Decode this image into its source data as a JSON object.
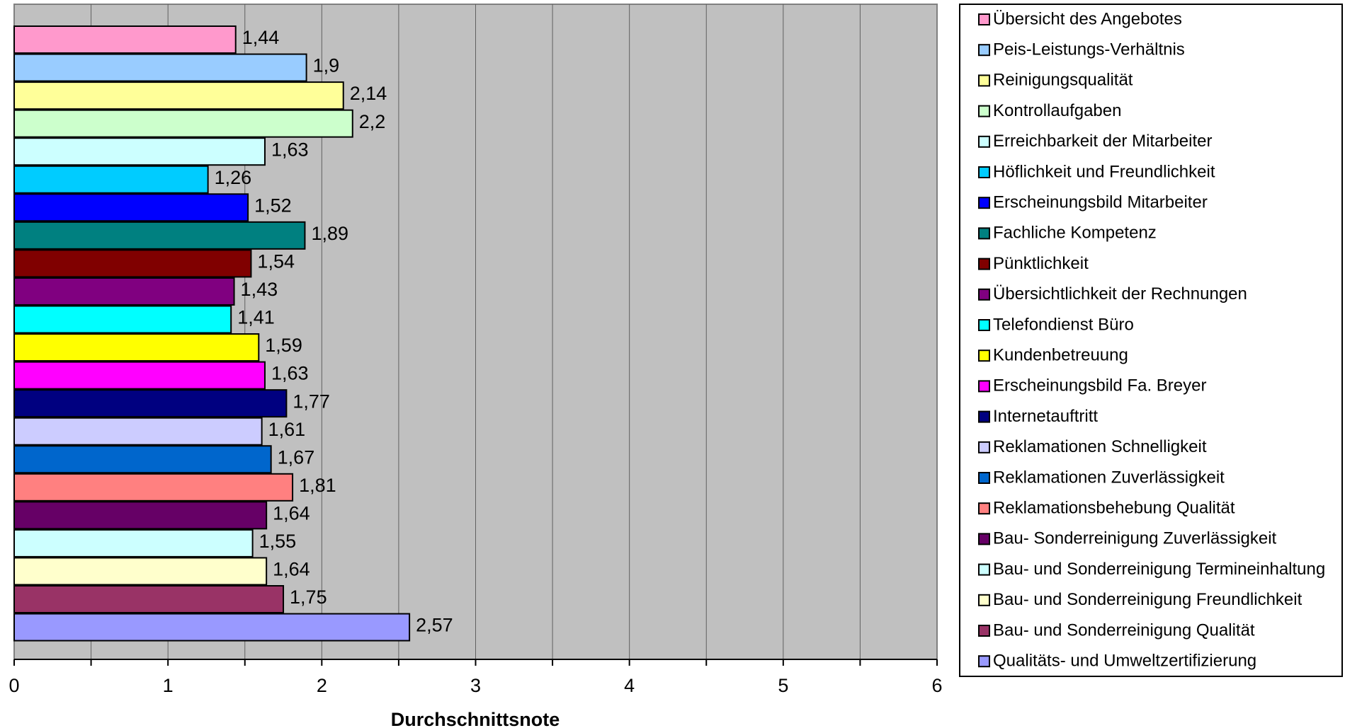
{
  "chart_data": {
    "type": "bar",
    "orientation": "horizontal",
    "xlabel": "Durchschnittsnote",
    "xlim": [
      0,
      6
    ],
    "xticks": [
      "0",
      "1",
      "2",
      "3",
      "4",
      "5",
      "6"
    ],
    "grid": true,
    "legend_position": "right",
    "plot_background": "#c0c0c0",
    "series": [
      {
        "name": "Übersicht des Angebotes",
        "value": 1.44,
        "label": "1,44",
        "color": "#ff99cc"
      },
      {
        "name": "Peis-Leistungs-Verhältnis",
        "value": 1.9,
        "label": "1,9",
        "color": "#99ccff"
      },
      {
        "name": "Reinigungsqualität",
        "value": 2.14,
        "label": "2,14",
        "color": "#ffff99"
      },
      {
        "name": "Kontrollaufgaben",
        "value": 2.2,
        "label": "2,2",
        "color": "#ccffcc"
      },
      {
        "name": "Erreichbarkeit der Mitarbeiter",
        "value": 1.63,
        "label": "1,63",
        "color": "#ccffff"
      },
      {
        "name": "Höflichkeit und Freundlichkeit",
        "value": 1.26,
        "label": "1,26",
        "color": "#00ccff"
      },
      {
        "name": "Erscheinungsbild Mitarbeiter",
        "value": 1.52,
        "label": "1,52",
        "color": "#0000ff"
      },
      {
        "name": "Fachliche Kompetenz",
        "value": 1.89,
        "label": "1,89",
        "color": "#008080"
      },
      {
        "name": "Pünktlichkeit",
        "value": 1.54,
        "label": "1,54",
        "color": "#800000"
      },
      {
        "name": "Übersichtlichkeit der Rechnungen",
        "value": 1.43,
        "label": "1,43",
        "color": "#800080"
      },
      {
        "name": "Telefondienst Büro",
        "value": 1.41,
        "label": "1,41",
        "color": "#00ffff"
      },
      {
        "name": "Kundenbetreuung",
        "value": 1.59,
        "label": "1,59",
        "color": "#ffff00"
      },
      {
        "name": "Erscheinungsbild Fa. Breyer",
        "value": 1.63,
        "label": "1,63",
        "color": "#ff00ff"
      },
      {
        "name": "Internetauftritt",
        "value": 1.77,
        "label": "1,77",
        "color": "#000080"
      },
      {
        "name": "Reklamationen Schnelligkeit",
        "value": 1.61,
        "label": "1,61",
        "color": "#ccccff"
      },
      {
        "name": "Reklamationen Zuverlässigkeit",
        "value": 1.67,
        "label": "1,67",
        "color": "#0066cc"
      },
      {
        "name": "Reklamationsbehebung Qualität",
        "value": 1.81,
        "label": "1,81",
        "color": "#ff8080"
      },
      {
        "name": "Bau- Sonderreinigung Zuverlässigkeit",
        "value": 1.64,
        "label": "1,64",
        "color": "#660066"
      },
      {
        "name": "Bau- und Sonderreinigung Termineinhaltung",
        "value": 1.55,
        "label": "1,55",
        "color": "#ccffff"
      },
      {
        "name": "Bau- und Sonderreinigung Freundlichkeit",
        "value": 1.64,
        "label": "1,64",
        "color": "#ffffcc"
      },
      {
        "name": "Bau- und Sonderreinigung Qualität",
        "value": 1.75,
        "label": "1,75",
        "color": "#993366"
      },
      {
        "name": "Qualitäts- und Umweltzertifizierung",
        "value": 2.57,
        "label": "2,57",
        "color": "#9999ff"
      }
    ]
  }
}
